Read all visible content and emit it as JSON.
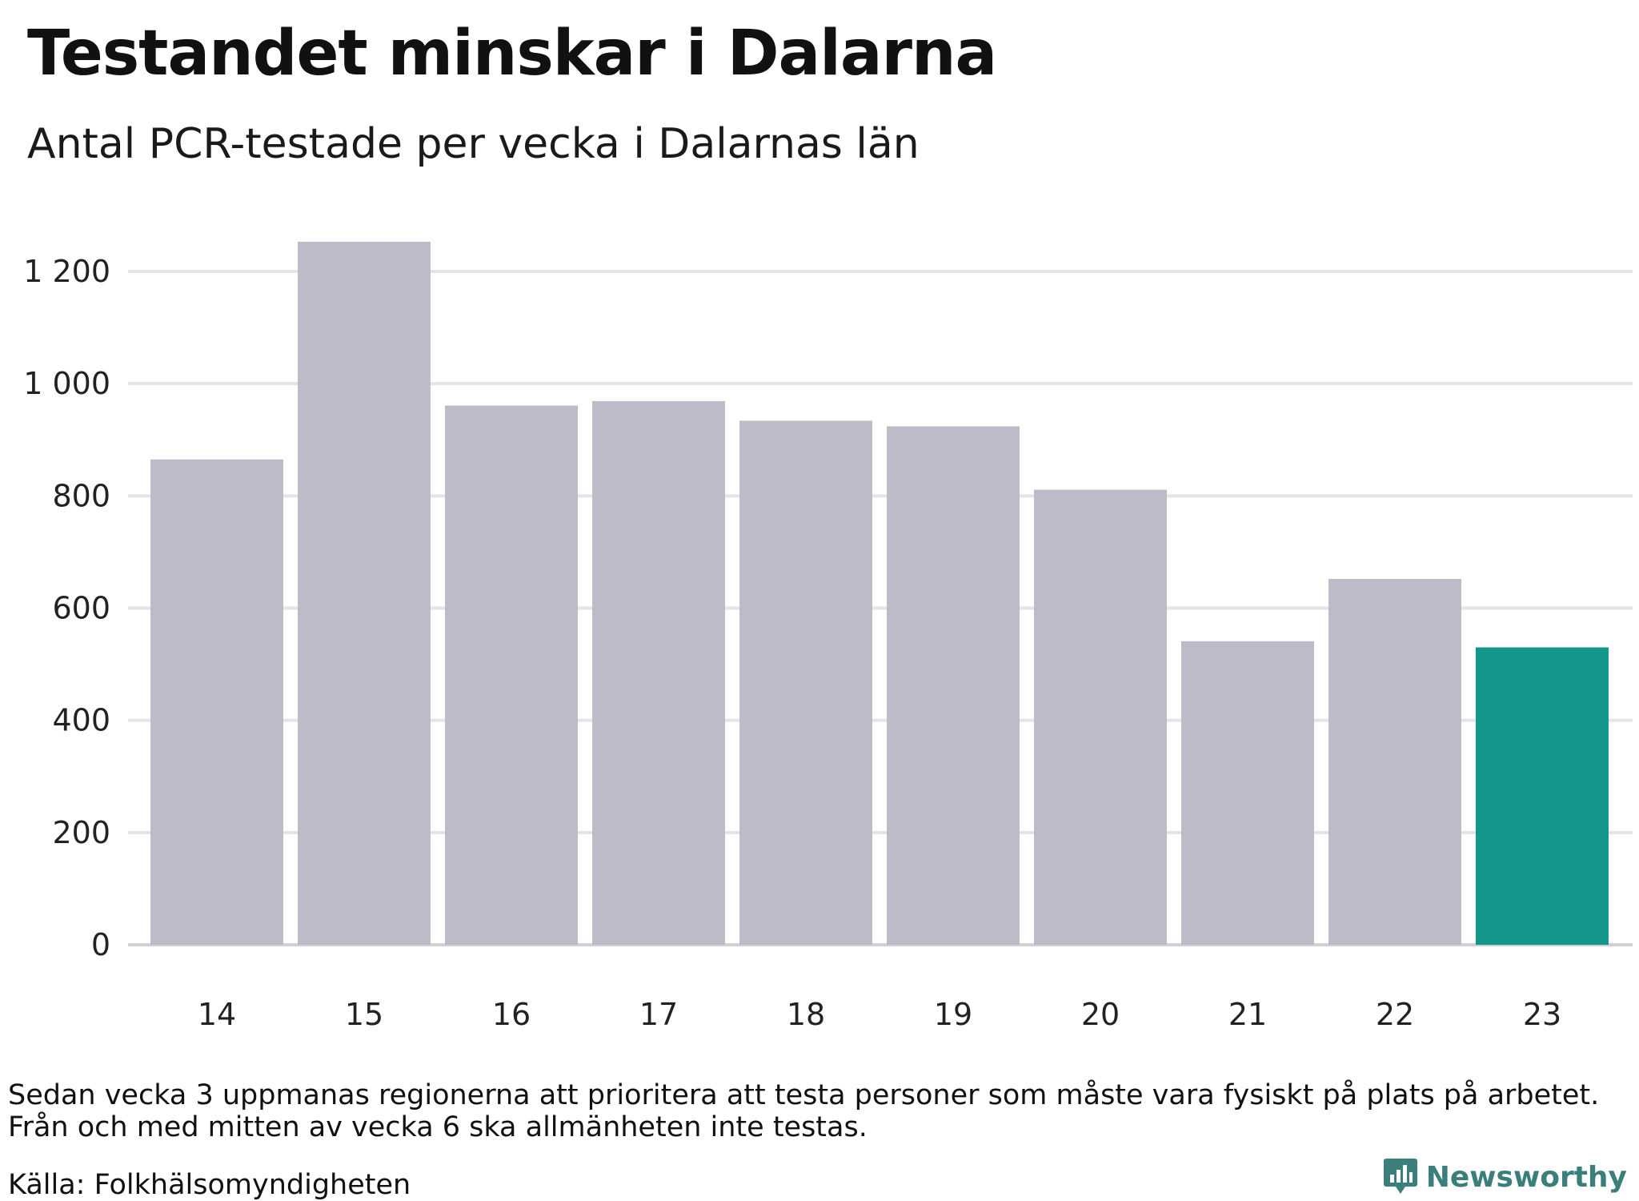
{
  "title": "Testandet minskar i Dalarna",
  "subtitle": "Antal PCR-testade per vecka i Dalarnas län",
  "notes": [
    "Sedan vecka 3 uppmanas regionerna att prioritera att testa personer som måste vara fysiskt på plats på arbetet.",
    "Från och med mitten av vecka 6 ska allmänheten inte testas."
  ],
  "source": "Källa: Folkhälsomyndigheten",
  "brand": {
    "name": "Newsworthy",
    "icon": "bar-chart-icon",
    "color": "#3a7f7a"
  },
  "colors": {
    "bar": "#bcbbc8",
    "highlight": "#14968a",
    "grid": "#e3e3e8",
    "axis": "#cfcfd6"
  },
  "chart_data": {
    "type": "bar",
    "categories": [
      "14",
      "15",
      "16",
      "17",
      "18",
      "19",
      "20",
      "21",
      "22",
      "23"
    ],
    "values": [
      865,
      1253,
      961,
      969,
      934,
      924,
      811,
      541,
      652,
      530
    ],
    "highlight_index": 9,
    "ylim": [
      0,
      1200
    ],
    "yticks": [
      0,
      200,
      400,
      600,
      800,
      1000,
      1200
    ],
    "ytick_labels": [
      "0",
      "200",
      "400",
      "600",
      "800",
      "1 000",
      "1 200"
    ],
    "grid": true,
    "legend": "none"
  }
}
